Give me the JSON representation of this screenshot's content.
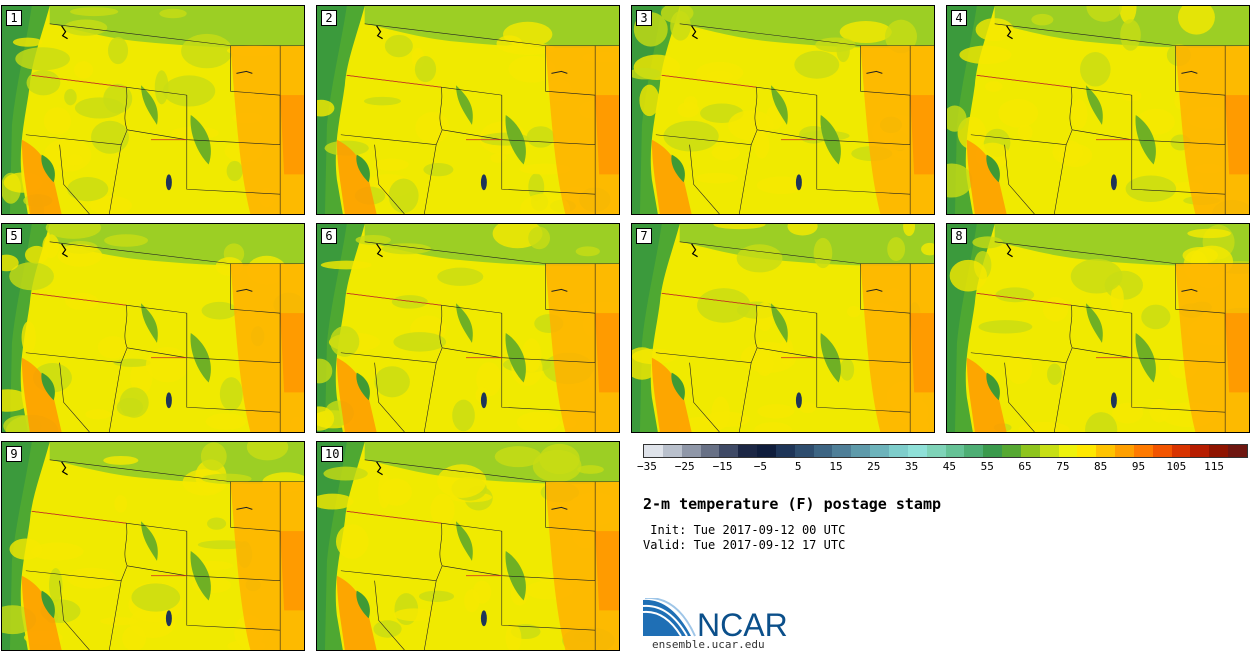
{
  "panels": [
    {
      "label": "1"
    },
    {
      "label": "2"
    },
    {
      "label": "3"
    },
    {
      "label": "4"
    },
    {
      "label": "5"
    },
    {
      "label": "6"
    },
    {
      "label": "7"
    },
    {
      "label": "8"
    },
    {
      "label": "9"
    },
    {
      "label": "10"
    }
  ],
  "colorbar": {
    "colors": [
      "#dfe3ea",
      "#b9c0cc",
      "#8f97a8",
      "#687186",
      "#3f4a66",
      "#1c2745",
      "#0f1d3c",
      "#1e3558",
      "#2e4d6e",
      "#3d6583",
      "#4f7f98",
      "#5e9aaa",
      "#6db3bb",
      "#7ecdcb",
      "#8fe0d8",
      "#7fd3b8",
      "#66c296",
      "#4eae74",
      "#3b9a4c",
      "#56a832",
      "#8ec41e",
      "#c7df15",
      "#eef20c",
      "#ffe800",
      "#ffc300",
      "#ff9f00",
      "#ff7a00",
      "#f25400",
      "#d83300",
      "#b61c00",
      "#8f1400",
      "#6e1610"
    ],
    "tick_labels": [
      "−35",
      "−25",
      "−15",
      "−5",
      "5",
      "15",
      "25",
      "35",
      "45",
      "55",
      "65",
      "75",
      "85",
      "95",
      "105",
      "115"
    ]
  },
  "title": "2-m temperature (F) postage stamp",
  "init_line": " Init: Tue 2017-09-12 00 UTC",
  "valid_line": "Valid: Tue 2017-09-12 17 UTC",
  "logo_text": "NCAR",
  "logo_url": "ensemble.ucar.edu"
}
